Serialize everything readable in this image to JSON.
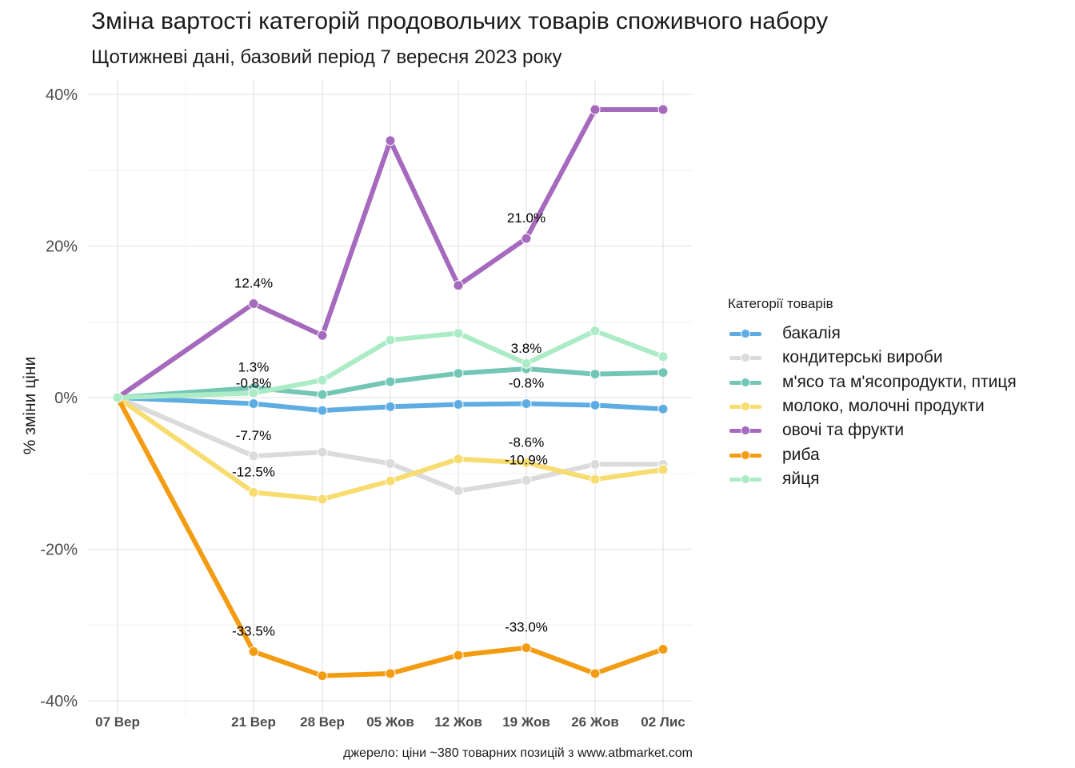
{
  "title": "Зміна вартості категорій продовольчих товарів споживчого набору",
  "subtitle": "Щотижневі дані, базовий період 7 вересня 2023 року",
  "caption": "джерело: ціни ~380 товарних позицій з www.atbmarket.com",
  "legend_title": "Категорії товарів",
  "chart_data": {
    "type": "line",
    "x": [
      "2023-09-07",
      "2023-09-21",
      "2023-09-28",
      "2023-10-05",
      "2023-10-12",
      "2023-10-19",
      "2023-10-26",
      "2023-11-02"
    ],
    "x_tick_labels": [
      "07 Вер",
      "21 Вер",
      "28 Вер",
      "05 Жов",
      "12 Жов",
      "19 Жов",
      "26 Жов",
      "02 Лис"
    ],
    "ylabel": "% зміни ціни",
    "ylim": [
      -40,
      40
    ],
    "y_ticks": [
      -40,
      -20,
      0,
      20,
      40
    ],
    "y_tick_labels": [
      "-40%",
      "-20%",
      "0%",
      "20%",
      "40%"
    ],
    "grid": true,
    "legend_position": "right",
    "series": [
      {
        "name": "бакалія",
        "color": "#5DADE2",
        "values": [
          0,
          -0.8,
          -1.7,
          -1.2,
          -0.9,
          -0.8,
          -1.0,
          -1.5
        ]
      },
      {
        "name": "кондитерські вироби",
        "color": "#D9DBDD",
        "values": [
          0,
          -7.7,
          -7.2,
          -8.7,
          -12.3,
          -10.9,
          -8.8,
          -8.8
        ]
      },
      {
        "name": "м'ясо та м'ясопродукти, птиця",
        "color": "#73C6B6",
        "values": [
          0,
          1.3,
          0.4,
          2.1,
          3.2,
          3.8,
          3.1,
          3.3
        ]
      },
      {
        "name": "молоко, молочні продукти",
        "color": "#F7DC6F",
        "values": [
          0,
          -12.5,
          -13.4,
          -11.0,
          -8.1,
          -8.6,
          -10.8,
          -9.5
        ]
      },
      {
        "name": "овочі та фрукти",
        "color": "#A569BD",
        "values": [
          0,
          12.4,
          8.2,
          33.9,
          14.8,
          21.0,
          38.0,
          38.0
        ]
      },
      {
        "name": "риба",
        "color": "#F39C12",
        "values": [
          0,
          -33.5,
          -36.7,
          -36.4,
          -34.0,
          -33.0,
          -36.4,
          -33.2
        ]
      },
      {
        "name": "яйця",
        "color": "#ABEBC6",
        "values": [
          0,
          0.6,
          2.3,
          7.6,
          8.5,
          4.5,
          8.8,
          5.4
        ]
      }
    ],
    "annotations": [
      {
        "x_index": 1,
        "y": 12.4,
        "text": "12.4%"
      },
      {
        "x_index": 1,
        "y": 1.3,
        "text": "1.3%"
      },
      {
        "x_index": 1,
        "y": -0.8,
        "text": "-0.8%"
      },
      {
        "x_index": 1,
        "y": -7.7,
        "text": "-7.7%"
      },
      {
        "x_index": 1,
        "y": -12.5,
        "text": "-12.5%"
      },
      {
        "x_index": 1,
        "y": -33.5,
        "text": "-33.5%"
      },
      {
        "x_index": 5,
        "y": 21.0,
        "text": "21.0%"
      },
      {
        "x_index": 5,
        "y": 3.8,
        "text": "3.8%"
      },
      {
        "x_index": 5,
        "y": -0.8,
        "text": "-0.8%"
      },
      {
        "x_index": 5,
        "y": -8.6,
        "text": "-8.6%"
      },
      {
        "x_index": 5,
        "y": -10.9,
        "text": "-10.9%"
      },
      {
        "x_index": 5,
        "y": -33.0,
        "text": "-33.0%"
      }
    ]
  }
}
